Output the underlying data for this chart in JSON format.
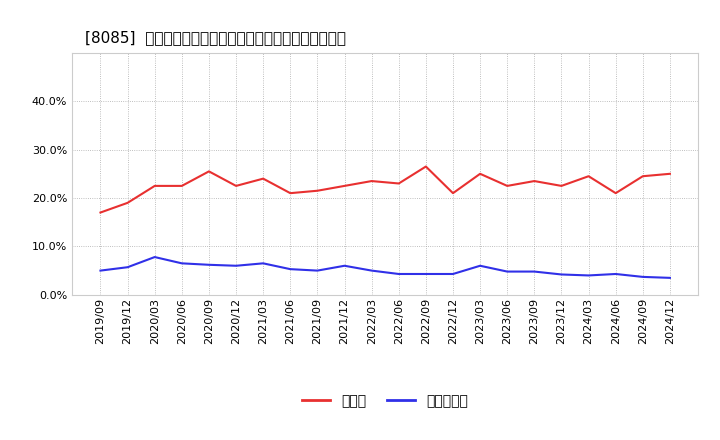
{
  "title": "[8085]  現預金、有利子負債の総資産に対する比率の推移",
  "x_labels": [
    "2019/09",
    "2019/12",
    "2020/03",
    "2020/06",
    "2020/09",
    "2020/12",
    "2021/03",
    "2021/06",
    "2021/09",
    "2021/12",
    "2022/03",
    "2022/06",
    "2022/09",
    "2022/12",
    "2023/03",
    "2023/06",
    "2023/09",
    "2023/12",
    "2024/03",
    "2024/06",
    "2024/09",
    "2024/12"
  ],
  "cash_values": [
    0.17,
    0.19,
    0.225,
    0.225,
    0.255,
    0.225,
    0.24,
    0.21,
    0.215,
    0.225,
    0.235,
    0.23,
    0.265,
    0.21,
    0.25,
    0.225,
    0.235,
    0.225,
    0.245,
    0.21,
    0.245,
    0.25
  ],
  "debt_values": [
    0.05,
    0.057,
    0.078,
    0.065,
    0.062,
    0.06,
    0.065,
    0.053,
    0.05,
    0.06,
    0.05,
    0.043,
    0.043,
    0.043,
    0.06,
    0.048,
    0.048,
    0.042,
    0.04,
    0.043,
    0.037,
    0.035
  ],
  "cash_color": "#e83030",
  "debt_color": "#3030e8",
  "cash_label": "現預金",
  "debt_label": "有利子負債",
  "ylim": [
    0.0,
    0.5
  ],
  "yticks": [
    0.0,
    0.1,
    0.2,
    0.3,
    0.4
  ],
  "grid_color": "#aaaaaa",
  "title_fontsize": 11,
  "tick_fontsize": 8,
  "legend_fontsize": 10
}
